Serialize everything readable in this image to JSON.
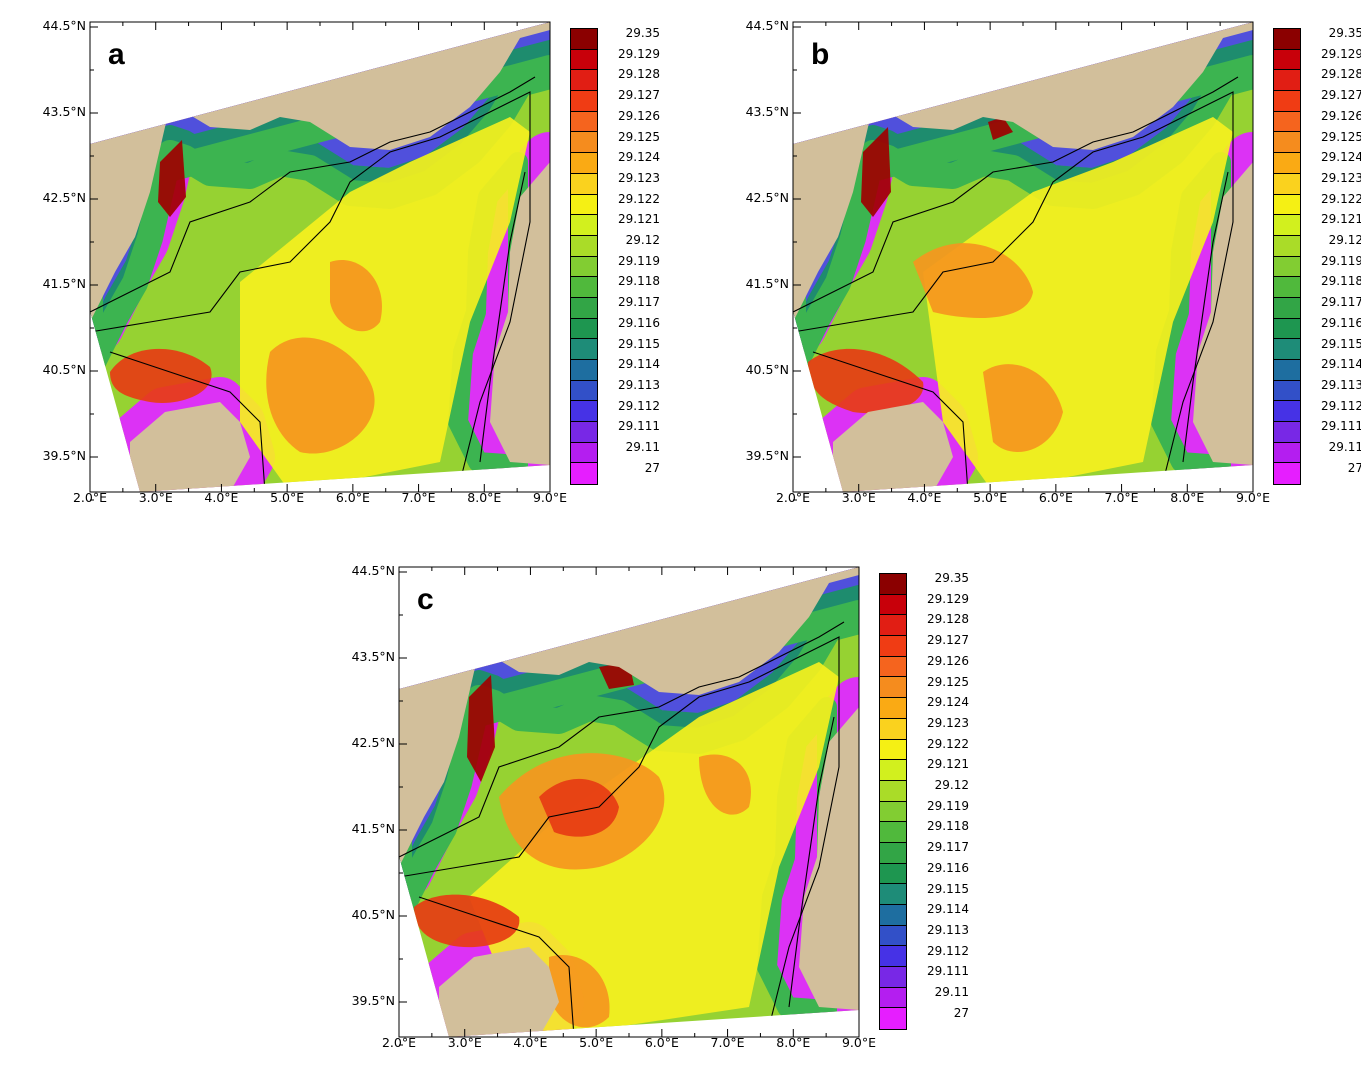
{
  "panels": [
    {
      "letter": "a",
      "variant": 0
    },
    {
      "letter": "b",
      "variant": 1
    },
    {
      "letter": "c",
      "variant": 2
    }
  ],
  "lat_labels": [
    "44.5°N",
    "43.5°N",
    "42.5°N",
    "41.5°N",
    "40.5°N",
    "39.5°N"
  ],
  "lon_labels": [
    "2.0°E",
    "3.0°E",
    "4.0°E",
    "5.0°E",
    "6.0°E",
    "7.0°E",
    "8.0°E",
    "9.0°E"
  ],
  "colorbar": {
    "labels": [
      "29.35",
      "29.129",
      "29.128",
      "29.127",
      "29.126",
      "29.125",
      "29.124",
      "29.123",
      "29.122",
      "29.121",
      "29.12",
      "29.119",
      "29.118",
      "29.117",
      "29.116",
      "29.115",
      "29.114",
      "29.113",
      "29.112",
      "29.111",
      "29.11",
      "27"
    ],
    "colors": [
      "#8b0000",
      "#c8000a",
      "#e11e14",
      "#f03c14",
      "#f5641e",
      "#f58c1e",
      "#faaa14",
      "#fad21e",
      "#f5f014",
      "#d2f01e",
      "#aadc28",
      "#82cd32",
      "#50b93c",
      "#32a546",
      "#1e9650",
      "#1e8c78",
      "#1e6ea0",
      "#3250c8",
      "#4632e6",
      "#7828e6",
      "#b41ef0",
      "#e61eff"
    ]
  },
  "map_colors": {
    "land": "#d2bf9b",
    "outside": "#ffffff",
    "purple": "#dc32f5",
    "blue": "#5050dc",
    "teal": "#1e8c6e",
    "green": "#3cb450",
    "lightgreen": "#96d232",
    "yellow": "#f5f01e",
    "orange": "#f5961e",
    "red": "#e63c14",
    "darkred": "#a00000"
  }
}
